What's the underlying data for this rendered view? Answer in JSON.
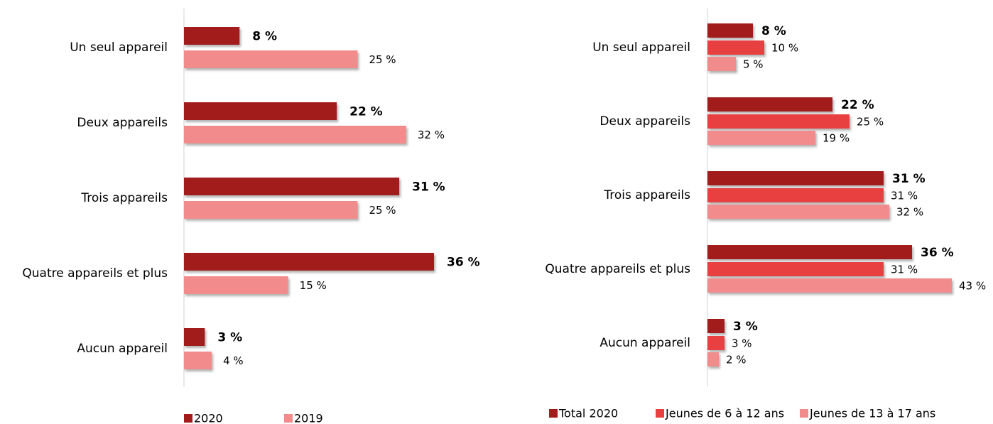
{
  "chart_data": [
    {
      "type": "bar",
      "orientation": "horizontal",
      "categories": [
        "Un seul appareil",
        "Deux appareils",
        "Trois appareils",
        "Quatre appareils et plus",
        "Aucun appareil"
      ],
      "series": [
        {
          "name": "2020",
          "color": "#a31b1b",
          "values": [
            8,
            22,
            31,
            36,
            3
          ],
          "value_labels": [
            "8 %",
            "22 %",
            "31 %",
            "36 %",
            "3 %"
          ]
        },
        {
          "name": "2019",
          "color": "#f28b8b",
          "values": [
            25,
            32,
            25,
            15,
            4
          ],
          "value_labels": [
            "25 %",
            "32 %",
            "25 %",
            "15 %",
            "4 %"
          ]
        }
      ]
    },
    {
      "type": "bar",
      "orientation": "horizontal",
      "categories": [
        "Un seul appareil",
        "Deux appareils",
        "Trois appareils",
        "Quatre appareils et plus",
        "Aucun appareil"
      ],
      "series": [
        {
          "name": "Total 2020",
          "color": "#a31b1b",
          "values": [
            8,
            22,
            31,
            36,
            3
          ],
          "value_labels": [
            "8 %",
            "22 %",
            "31 %",
            "36 %",
            "3 %"
          ]
        },
        {
          "name": "Jeunes de 6 à 12 ans",
          "color": "#e84040",
          "values": [
            10,
            25,
            31,
            31,
            3
          ],
          "value_labels": [
            "10 %",
            "25 %",
            "31 %",
            "31 %",
            "3 %"
          ]
        },
        {
          "name": "Jeunes de 13 à 17 ans",
          "color": "#f28b8b",
          "values": [
            5,
            19,
            32,
            43,
            2
          ],
          "value_labels": [
            "5 %",
            "19 %",
            "32 %",
            "43 %",
            "2 %"
          ]
        }
      ]
    }
  ]
}
